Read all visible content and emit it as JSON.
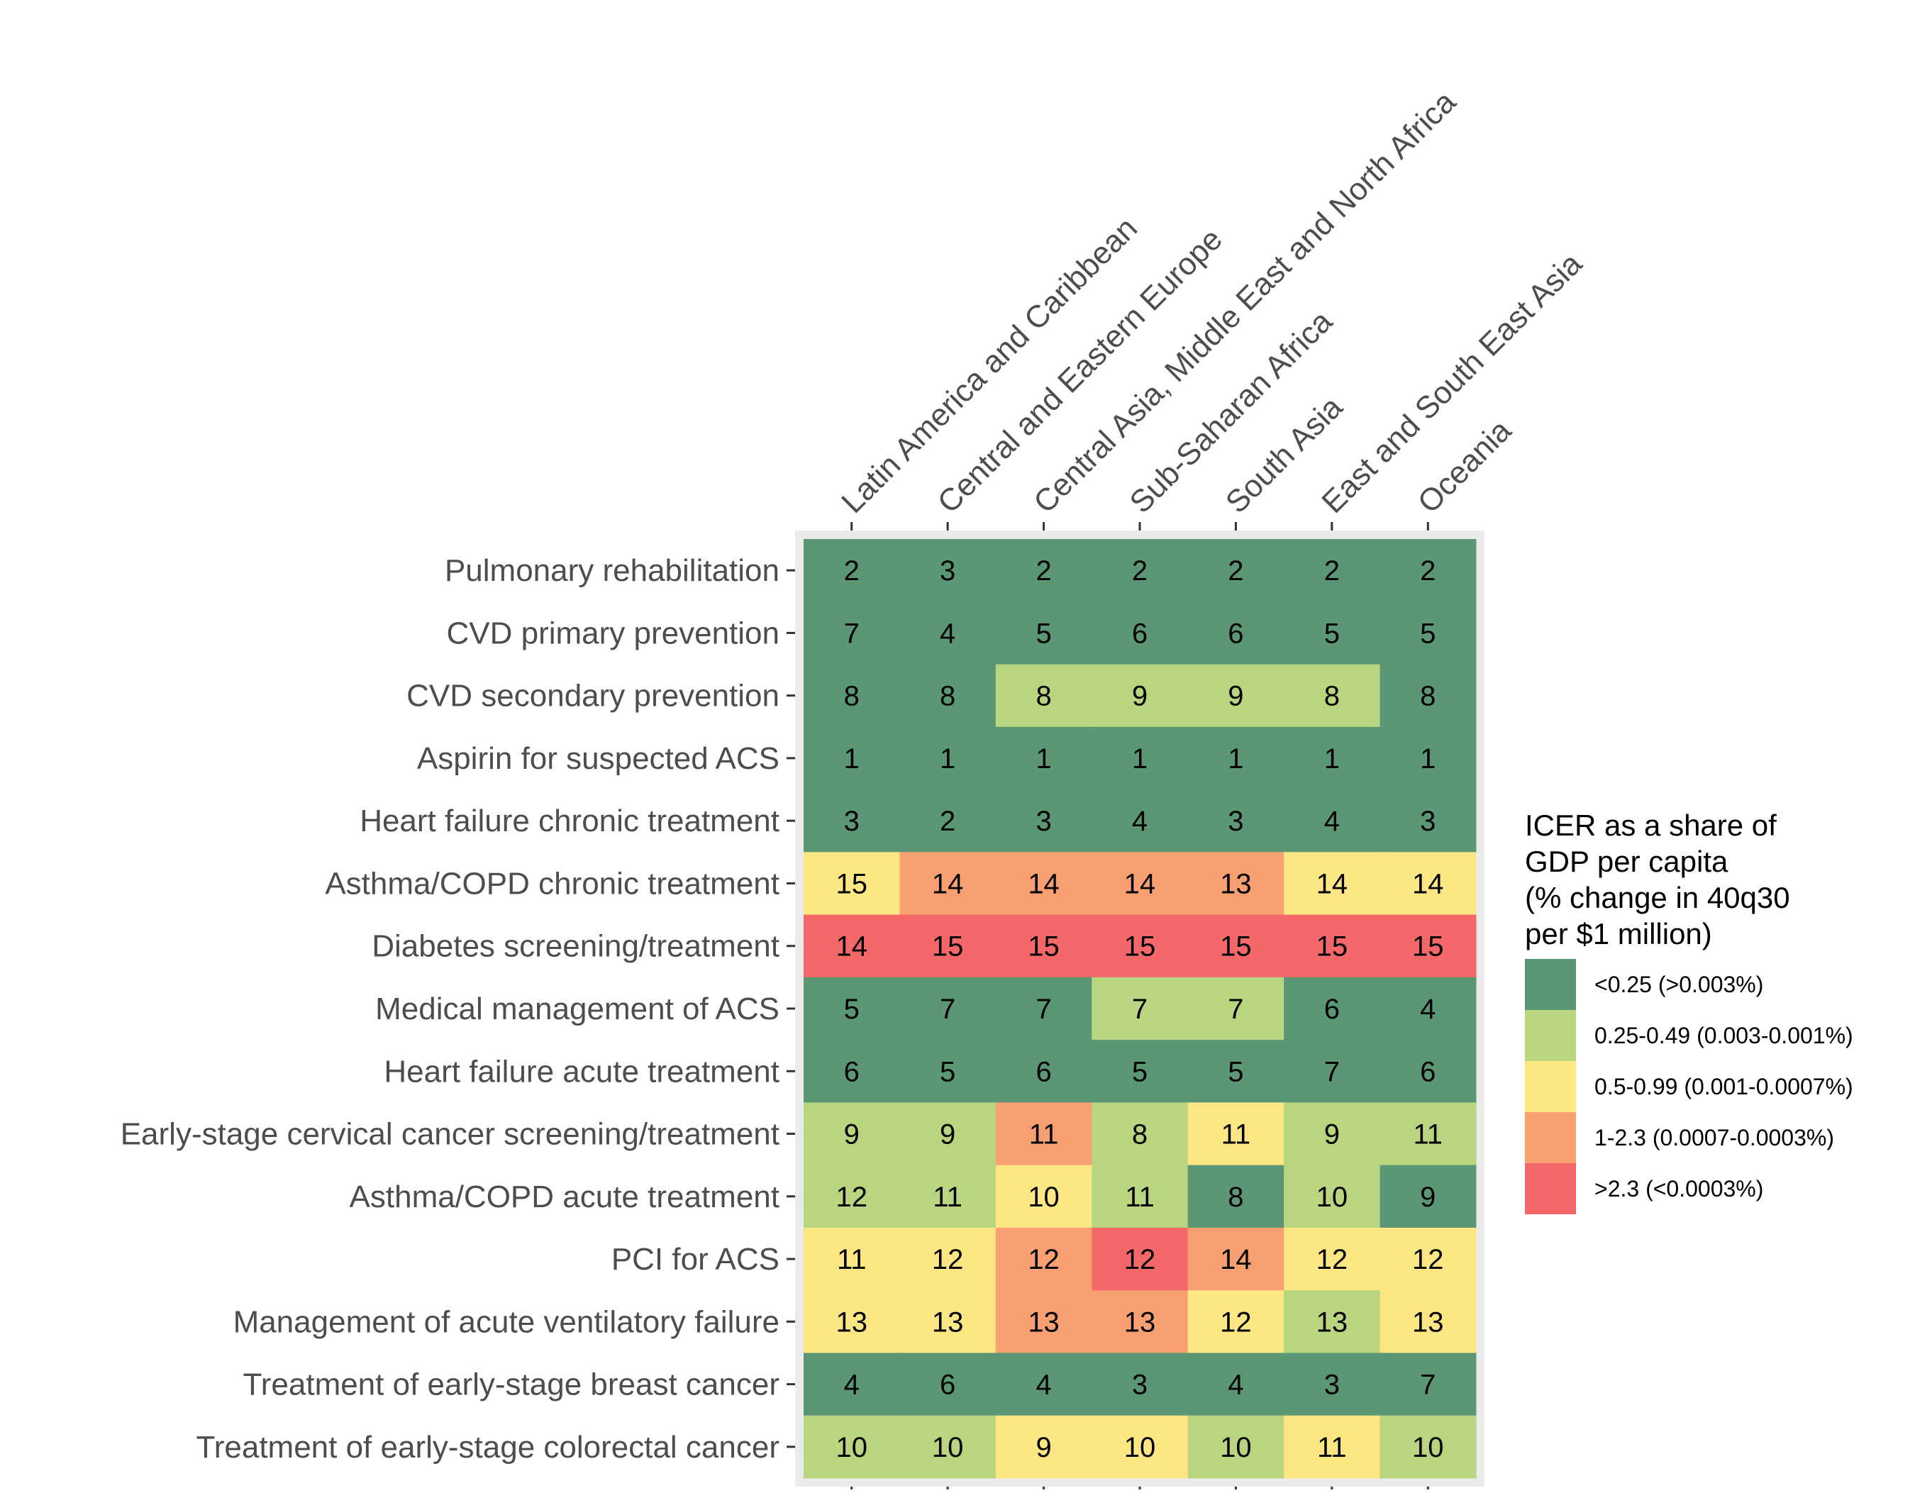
{
  "chart_data": {
    "type": "heatmap",
    "title": "",
    "xlabel": "",
    "ylabel": "",
    "x_position": "top",
    "columns": [
      "Latin America and Caribbean",
      "Central and Eastern Europe",
      "Central Asia, Middle East and North Africa",
      "Sub-Saharan Africa",
      "South Asia",
      "East and South East Asia",
      "Oceania"
    ],
    "rows": [
      "Pulmonary rehabilitation",
      "CVD primary prevention",
      "CVD secondary prevention",
      "Aspirin for suspected ACS",
      "Heart failure chronic treatment",
      "Asthma/COPD chronic treatment",
      "Diabetes screening/treatment",
      "Medical management of ACS",
      "Heart failure acute treatment",
      "Early-stage cervical cancer screening/treatment",
      "Asthma/COPD acute treatment",
      "PCI for ACS",
      "Management of acute ventilatory failure",
      "Treatment of early-stage breast cancer",
      "Treatment of early-stage colorectal cancer"
    ],
    "values": [
      [
        2,
        3,
        2,
        2,
        2,
        2,
        2
      ],
      [
        7,
        4,
        5,
        6,
        6,
        5,
        5
      ],
      [
        8,
        8,
        8,
        9,
        9,
        8,
        8
      ],
      [
        1,
        1,
        1,
        1,
        1,
        1,
        1
      ],
      [
        3,
        2,
        3,
        4,
        3,
        4,
        3
      ],
      [
        15,
        14,
        14,
        14,
        13,
        14,
        14
      ],
      [
        14,
        15,
        15,
        15,
        15,
        15,
        15
      ],
      [
        5,
        7,
        7,
        7,
        7,
        6,
        4
      ],
      [
        6,
        5,
        6,
        5,
        5,
        7,
        6
      ],
      [
        9,
        9,
        11,
        8,
        11,
        9,
        11
      ],
      [
        12,
        11,
        10,
        11,
        8,
        10,
        9
      ],
      [
        11,
        12,
        12,
        12,
        14,
        12,
        12
      ],
      [
        13,
        13,
        13,
        13,
        12,
        13,
        13
      ],
      [
        4,
        6,
        4,
        3,
        4,
        3,
        7
      ],
      [
        10,
        10,
        9,
        10,
        10,
        11,
        10
      ]
    ],
    "categories_matrix": [
      [
        0,
        0,
        0,
        0,
        0,
        0,
        0
      ],
      [
        0,
        0,
        0,
        0,
        0,
        0,
        0
      ],
      [
        0,
        0,
        1,
        1,
        1,
        1,
        0
      ],
      [
        0,
        0,
        0,
        0,
        0,
        0,
        0
      ],
      [
        0,
        0,
        0,
        0,
        0,
        0,
        0
      ],
      [
        2,
        3,
        3,
        3,
        3,
        2,
        2
      ],
      [
        4,
        4,
        4,
        4,
        4,
        4,
        4
      ],
      [
        0,
        0,
        0,
        1,
        1,
        0,
        0
      ],
      [
        0,
        0,
        0,
        0,
        0,
        0,
        0
      ],
      [
        1,
        1,
        3,
        1,
        2,
        1,
        1
      ],
      [
        1,
        1,
        2,
        1,
        0,
        1,
        0
      ],
      [
        2,
        2,
        3,
        4,
        3,
        2,
        2
      ],
      [
        2,
        2,
        3,
        3,
        2,
        1,
        2
      ],
      [
        0,
        0,
        0,
        0,
        0,
        0,
        0
      ],
      [
        1,
        1,
        2,
        2,
        1,
        2,
        1
      ]
    ],
    "legend": {
      "title_lines": [
        "ICER as a share of",
        "GDP per capita",
        "(% change in 40q30",
        "per $1 million)"
      ],
      "position": "right",
      "entries": [
        {
          "label": "<0.25 (>0.003%)",
          "color": "#5b9775"
        },
        {
          "label": "0.25-0.49 (0.003-0.001%)",
          "color": "#b9d57f"
        },
        {
          "label": "0.5-0.99 (0.001-0.0007%)",
          "color": "#fde784"
        },
        {
          "label": "1-2.3 (0.0007-0.0003%)",
          "color": "#f9a072"
        },
        {
          "label": ">2.3 (<0.0003%)",
          "color": "#f56869"
        }
      ]
    },
    "panel_background": "#ebebeb"
  }
}
